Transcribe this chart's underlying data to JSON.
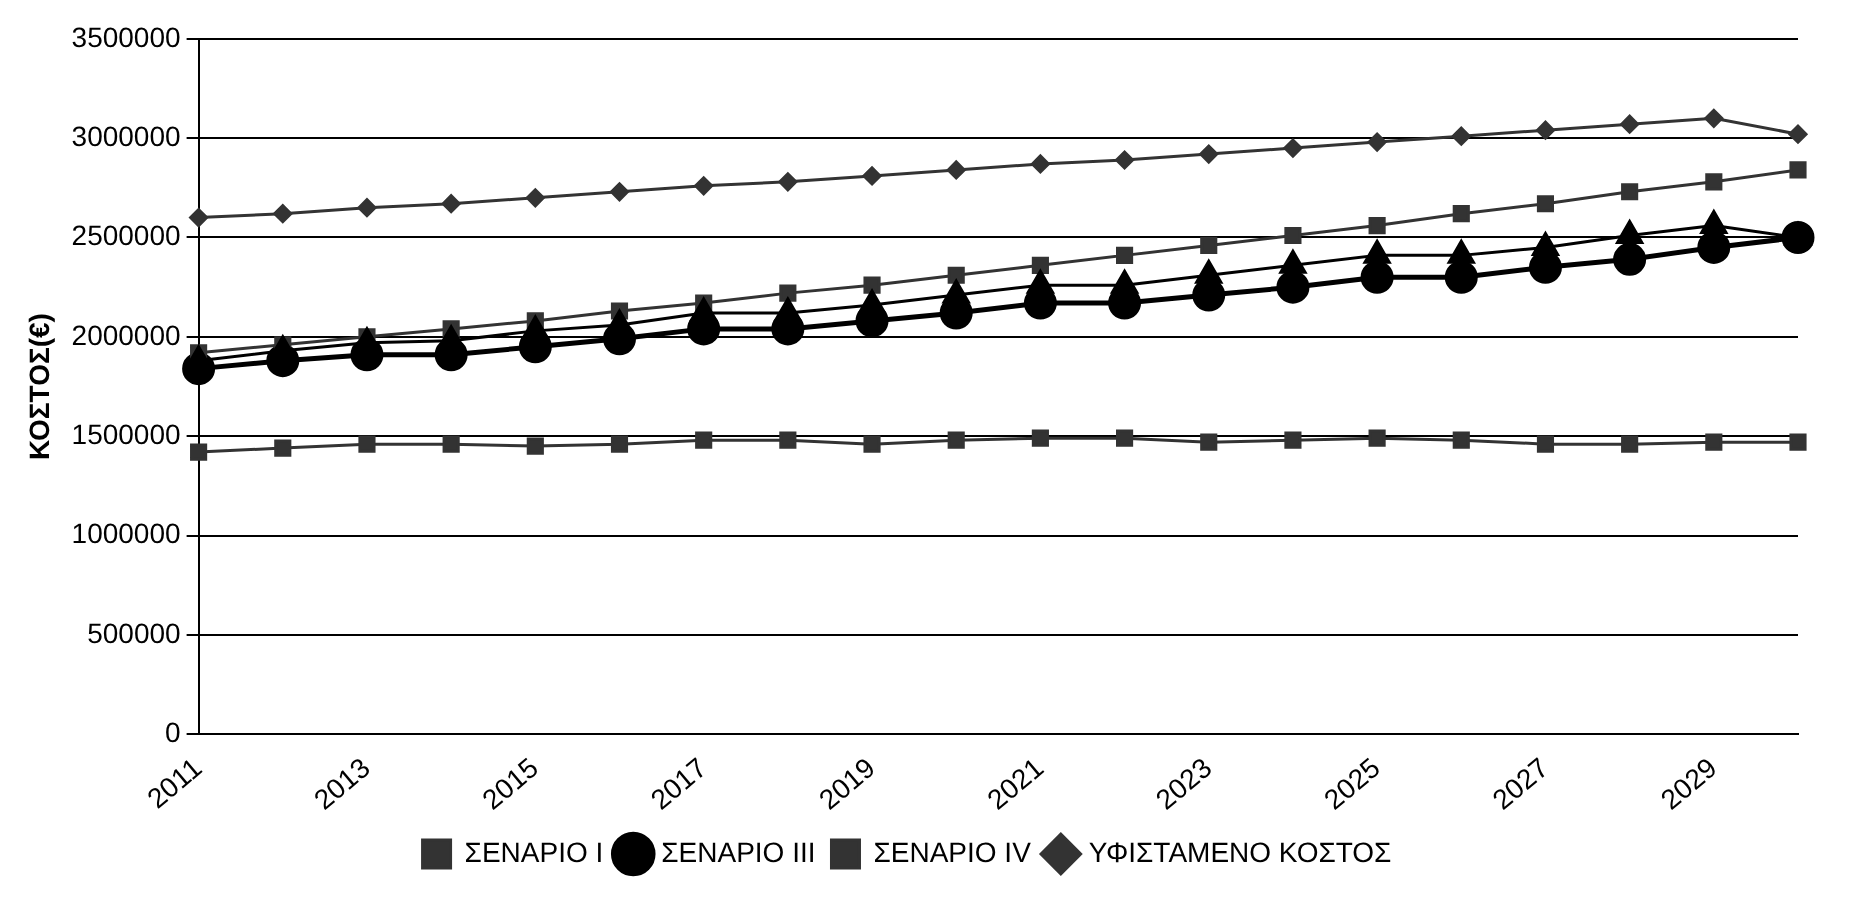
{
  "chart_data": {
    "type": "line",
    "ylabel": "ΚΟΣΤΟΣ(€)",
    "categories": [
      "2011",
      null,
      "2013",
      null,
      "2015",
      null,
      "2017",
      null,
      "2019",
      null,
      "2021",
      null,
      "2023",
      null,
      "2025",
      null,
      "2027",
      null,
      "2029",
      null
    ],
    "series": [
      {
        "name": "ΣΕΝΑΡΙΟ I",
        "color": "#333333",
        "marker": "square",
        "values": [
          1920000,
          1960000,
          2000000,
          2040000,
          2080000,
          2130000,
          2170000,
          2220000,
          2260000,
          2310000,
          2360000,
          2410000,
          2460000,
          2510000,
          2560000,
          2620000,
          2670000,
          2730000,
          2780000,
          2840000
        ]
      },
      {
        "color": "#000000",
        "marker": "triangle",
        "values": [
          1880000,
          1930000,
          1970000,
          1980000,
          2030000,
          2060000,
          2120000,
          2120000,
          2160000,
          2210000,
          2260000,
          2260000,
          2310000,
          2360000,
          2410000,
          2410000,
          2450000,
          2510000,
          2560000,
          2500000
        ]
      },
      {
        "name": "ΣΕΝΑΡΙΟ III",
        "color": "#000000",
        "marker": "circle",
        "values": [
          1840000,
          1880000,
          1910000,
          1910000,
          1950000,
          1990000,
          2040000,
          2040000,
          2080000,
          2120000,
          2170000,
          2170000,
          2210000,
          2250000,
          2300000,
          2300000,
          2350000,
          2390000,
          2450000,
          2500000
        ]
      },
      {
        "name": "ΣΕΝΑΡΙΟ IV",
        "color": "#333333",
        "marker": "square",
        "values": [
          1420000,
          1440000,
          1460000,
          1460000,
          1450000,
          1460000,
          1480000,
          1480000,
          1460000,
          1480000,
          1490000,
          1490000,
          1470000,
          1480000,
          1490000,
          1480000,
          1460000,
          1460000,
          1470000,
          1470000
        ]
      },
      {
        "name": "ΥΦΙΣΤΑΜΕΝΟ ΚΟΣΤΟΣ",
        "color": "#333333",
        "marker": "diamond",
        "values": [
          2600000,
          2620000,
          2650000,
          2670000,
          2700000,
          2730000,
          2760000,
          2780000,
          2810000,
          2840000,
          2870000,
          2890000,
          2920000,
          2950000,
          2980000,
          3010000,
          3040000,
          3070000,
          3100000,
          3020000
        ]
      }
    ],
    "ylim": [
      0,
      3500000
    ],
    "yticks": [
      0,
      500000,
      1000000,
      1500000,
      2000000,
      2500000,
      3000000,
      3500000
    ],
    "grid": "y",
    "legend": "bottom",
    "line_style": "solid"
  }
}
